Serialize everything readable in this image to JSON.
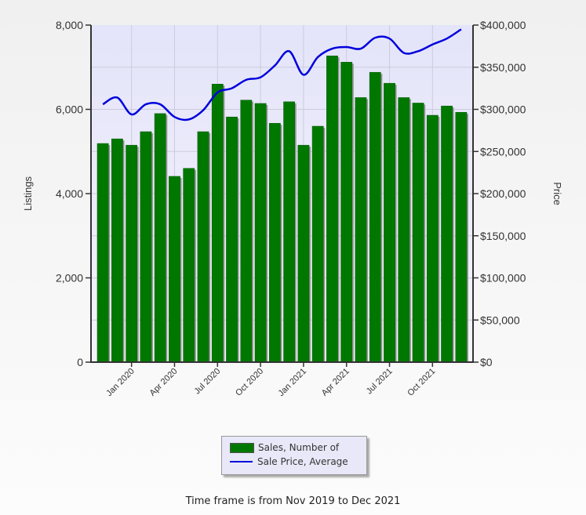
{
  "chart_data": {
    "type": "bar",
    "title": "",
    "categories": [
      "Nov 2019",
      "Dec 2019",
      "Jan 2020",
      "Feb 2020",
      "Mar 2020",
      "Apr 2020",
      "May 2020",
      "Jun 2020",
      "Jul 2020",
      "Aug 2020",
      "Sep 2020",
      "Oct 2020",
      "Nov 2020",
      "Dec 2020",
      "Jan 2021",
      "Feb 2021",
      "Mar 2021",
      "Apr 2021",
      "May 2021",
      "Jun 2021",
      "Jul 2021",
      "Aug 2021",
      "Sep 2021",
      "Oct 2021",
      "Nov 2021",
      "Dec 2021"
    ],
    "series": [
      {
        "name": "Sales, Number of",
        "type": "bar",
        "axis": "left",
        "color": "#007800",
        "values": [
          5190,
          5300,
          5150,
          5470,
          5900,
          4410,
          4600,
          5470,
          6600,
          5820,
          6220,
          6140,
          5670,
          6180,
          5150,
          5600,
          7270,
          7120,
          6280,
          6880,
          6620,
          6280,
          6150,
          5860,
          6080,
          5930
        ]
      },
      {
        "name": "Sale Price, Average",
        "type": "line",
        "axis": "right",
        "color": "#0000dd",
        "values": [
          306000,
          314000,
          294000,
          306000,
          306000,
          291000,
          288000,
          299000,
          320000,
          325000,
          335000,
          338000,
          352000,
          369000,
          341000,
          362000,
          372000,
          374000,
          372000,
          385000,
          384000,
          367000,
          369000,
          377000,
          384000,
          395000
        ]
      }
    ],
    "xlabel": "",
    "ylabel": "Listings",
    "ylabel_right": "Price",
    "ylim": [
      0,
      8000
    ],
    "ylim_right": [
      0,
      400000
    ],
    "y_ticks": [
      "0",
      "2,000",
      "4,000",
      "6,000",
      "8,000"
    ],
    "y_right_ticks": [
      "$0",
      "$50,000",
      "$100,000",
      "$150,000",
      "$200,000",
      "$250,000",
      "$300,000",
      "$350,000",
      "$400,000"
    ],
    "x_tick_labels": [
      {
        "label": "Jan 2020",
        "index": 2
      },
      {
        "label": "Apr 2020",
        "index": 5
      },
      {
        "label": "Jul 2020",
        "index": 8
      },
      {
        "label": "Oct 2020",
        "index": 11
      },
      {
        "label": "Jan 2021",
        "index": 14
      },
      {
        "label": "Apr 2021",
        "index": 17
      },
      {
        "label": "Jul 2021",
        "index": 20
      },
      {
        "label": "Oct 2021",
        "index": 23
      }
    ],
    "grid": true,
    "legend_position": "bottom"
  },
  "legend": {
    "items": [
      {
        "label": "Sales, Number of"
      },
      {
        "label": "Sale Price, Average"
      }
    ]
  },
  "footer": {
    "text": "Time frame is from Nov 2019 to Dec 2021"
  }
}
